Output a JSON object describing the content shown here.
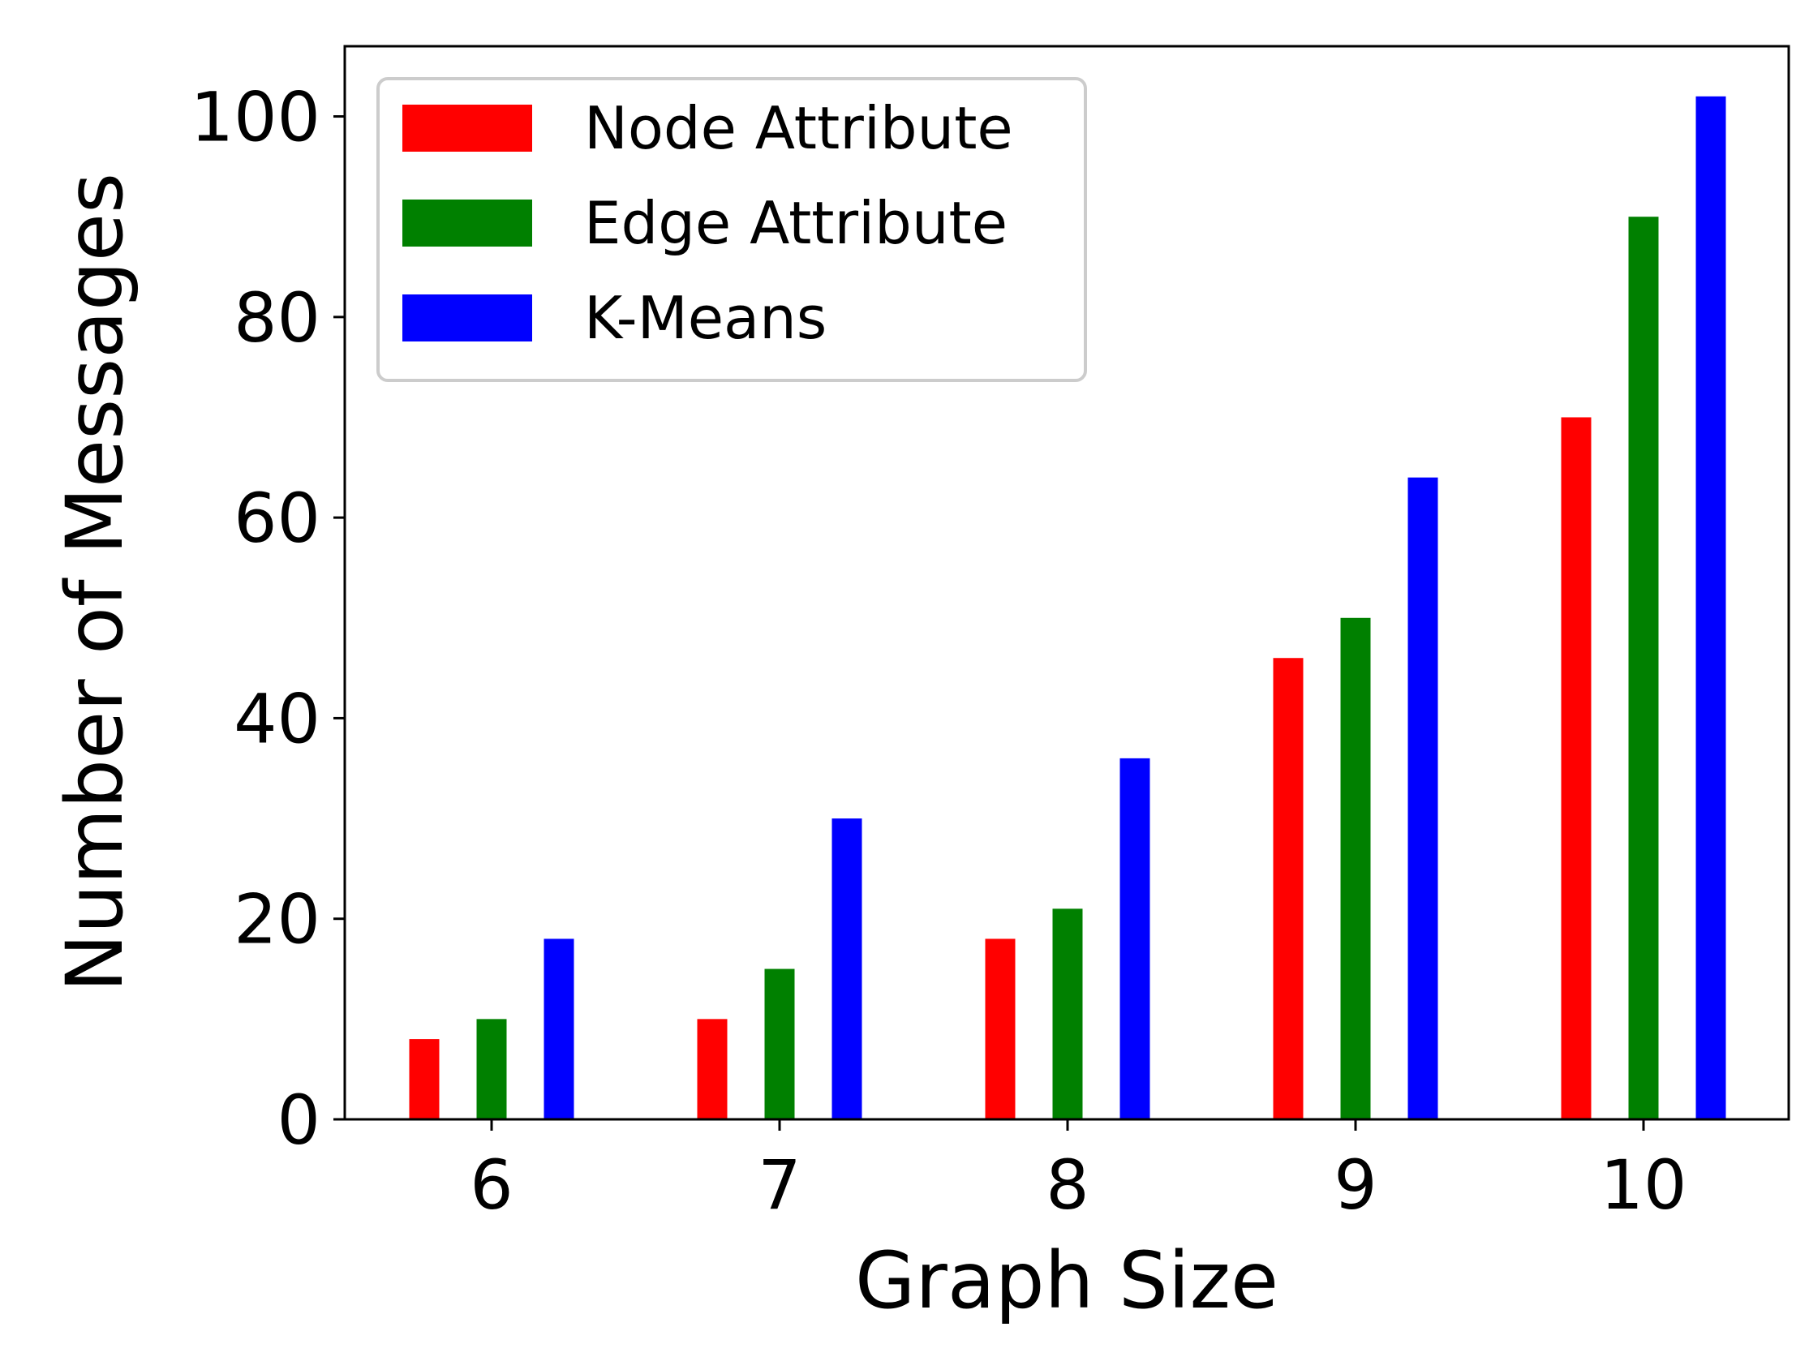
{
  "chart_data": {
    "type": "bar",
    "xlabel": "Graph Size",
    "ylabel": "Number of Messages",
    "categories": [
      "6",
      "7",
      "8",
      "9",
      "10"
    ],
    "ylim": [
      0,
      107
    ],
    "yticks": [
      0,
      20,
      40,
      60,
      80,
      100
    ],
    "grid": false,
    "legend_position": "top-left",
    "series": [
      {
        "name": "Node Attribute",
        "color": "#ff0000",
        "values": [
          8,
          10,
          18,
          46,
          70
        ]
      },
      {
        "name": "Edge Attribute",
        "color": "#008000",
        "values": [
          10,
          15,
          21,
          50,
          90
        ]
      },
      {
        "name": "K-Means",
        "color": "#0000ff",
        "values": [
          18,
          30,
          36,
          64,
          102
        ]
      }
    ]
  }
}
